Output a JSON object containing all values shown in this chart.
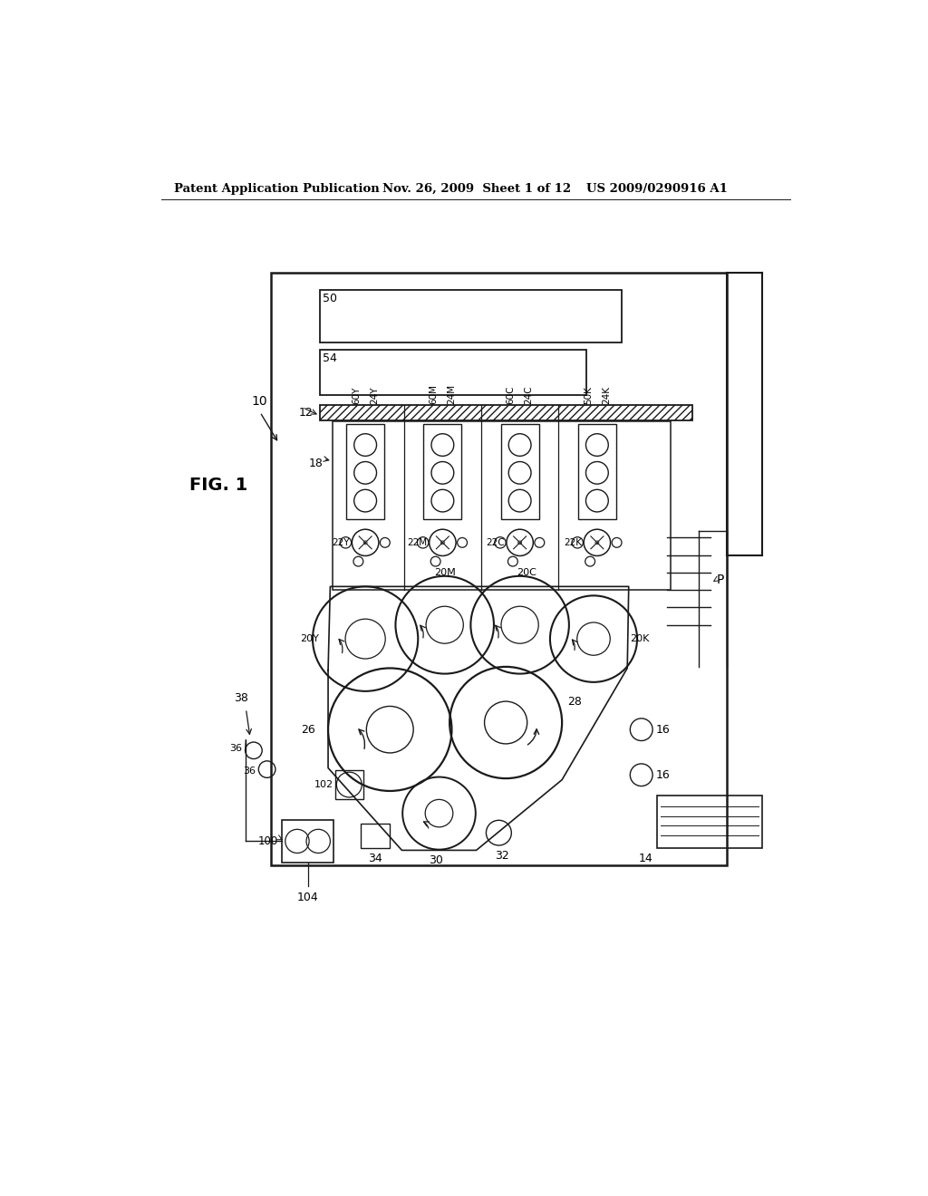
{
  "title_left": "Patent Application Publication",
  "title_mid": "Nov. 26, 2009  Sheet 1 of 12",
  "title_right": "US 2009/0290916 A1",
  "fig_label": "FIG. 1",
  "bg_color": "#ffffff",
  "line_color": "#1a1a1a"
}
